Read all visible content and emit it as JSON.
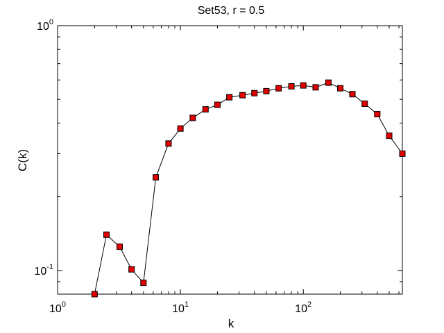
{
  "chart_data": {
    "type": "line",
    "title": "Set53, r = 0.5",
    "xlabel": "k",
    "ylabel": "C(k)",
    "x_scale": "log",
    "y_scale": "log",
    "xlim": [
      1,
      640
    ],
    "ylim": [
      0.08,
      1
    ],
    "grid": false,
    "x_ticks": [
      {
        "base": "10",
        "exp": "0"
      },
      {
        "base": "10",
        "exp": "1"
      },
      {
        "base": "10",
        "exp": "2"
      }
    ],
    "y_ticks": [
      {
        "base": "10",
        "exp": "-1"
      },
      {
        "base": "10",
        "exp": "0"
      }
    ],
    "series": [
      {
        "marker": "square",
        "marker_color": "#e00000",
        "line_color": "#000000",
        "x": [
          2,
          2.5,
          3.2,
          4,
          5,
          6.3,
          8,
          10,
          12.6,
          16,
          20,
          25,
          32,
          40,
          50,
          63,
          80,
          100,
          126,
          160,
          200,
          251,
          316,
          400,
          500,
          640
        ],
        "y": [
          0.08,
          0.14,
          0.125,
          0.101,
          0.089,
          0.24,
          0.33,
          0.38,
          0.42,
          0.455,
          0.475,
          0.51,
          0.52,
          0.53,
          0.54,
          0.555,
          0.565,
          0.57,
          0.56,
          0.585,
          0.555,
          0.525,
          0.48,
          0.435,
          0.355,
          0.3
        ]
      }
    ]
  }
}
